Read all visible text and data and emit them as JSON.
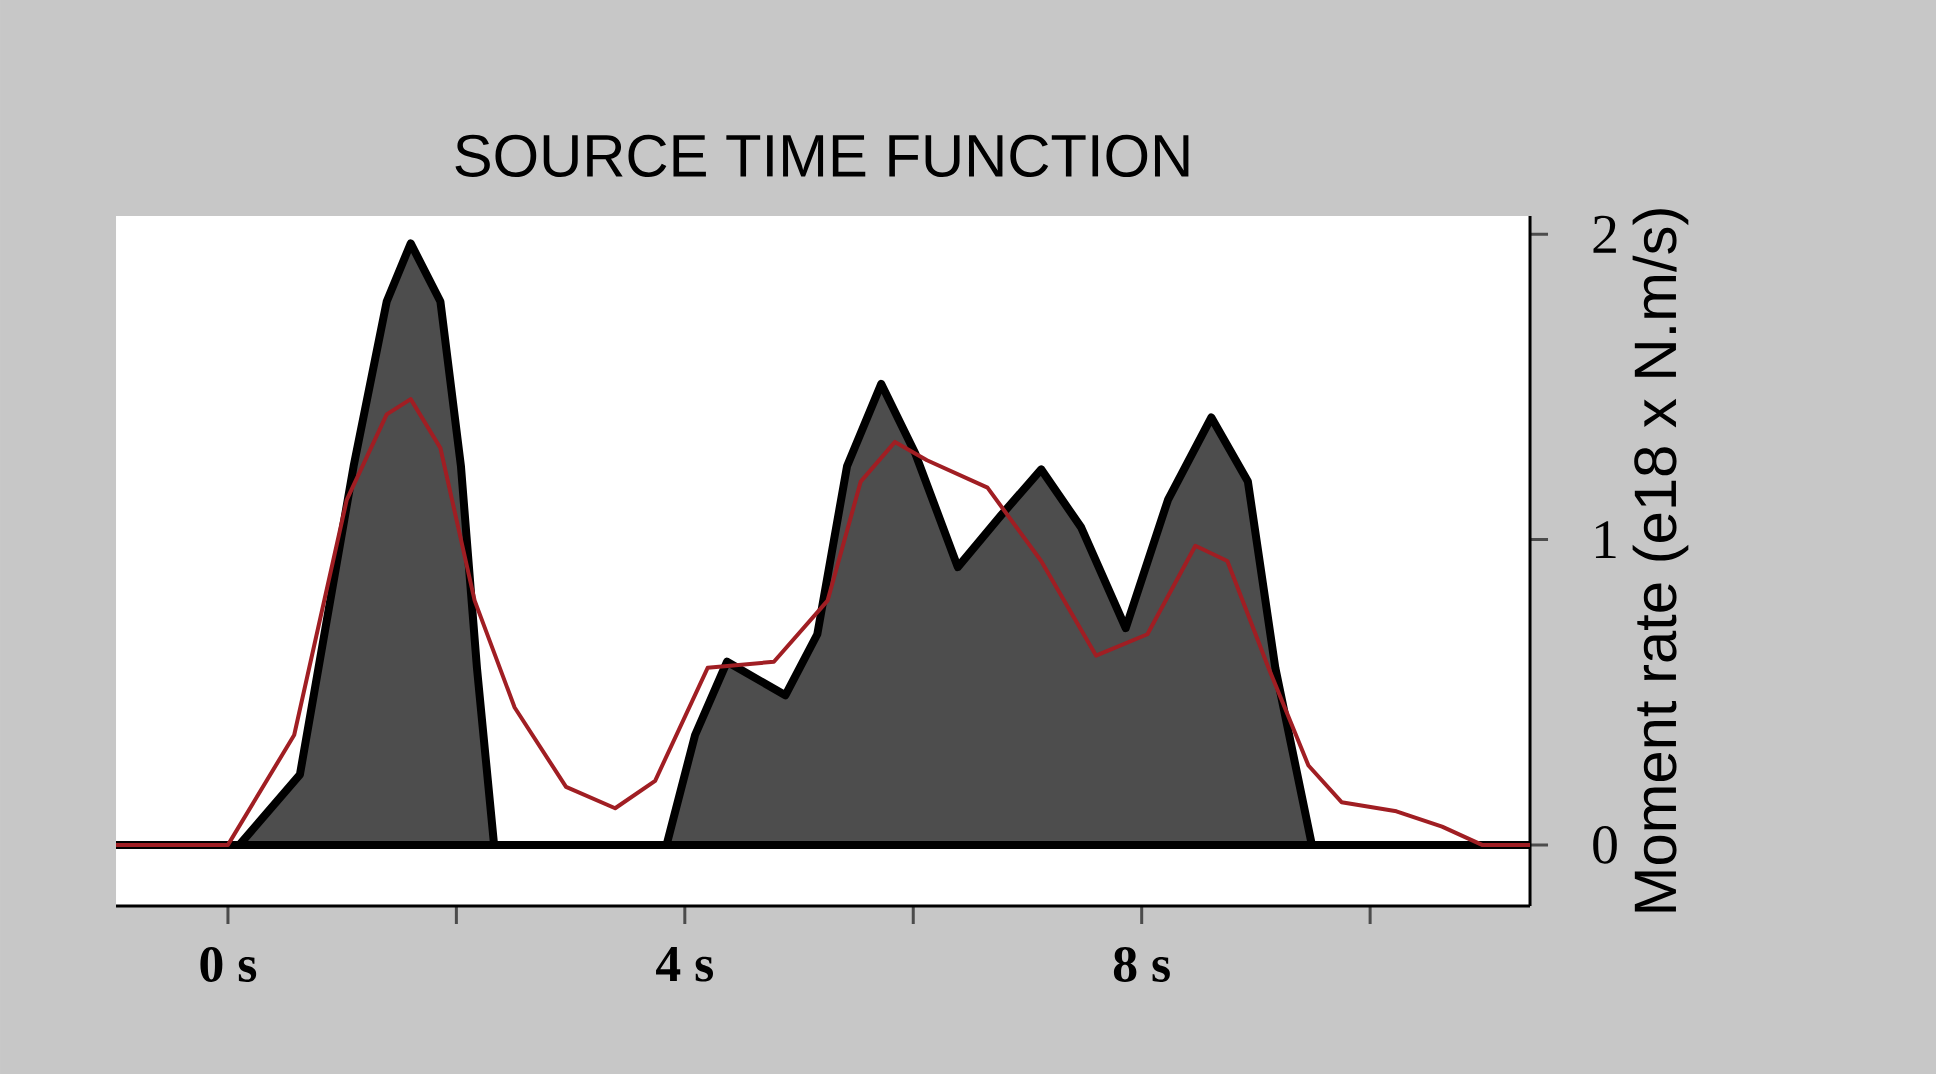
{
  "chart_data": {
    "type": "area",
    "title": "SOURCE TIME FUNCTION",
    "ylabel": "Moment rate (e18 x N.m/s)",
    "xlim": [
      -0.98,
      11.4
    ],
    "ylim": [
      -0.2,
      2.06
    ],
    "xticks": [
      {
        "value": 0,
        "label": "0 s"
      },
      {
        "value": 2,
        "label": null
      },
      {
        "value": 4,
        "label": "4 s"
      },
      {
        "value": 6,
        "label": null
      },
      {
        "value": 8,
        "label": "8 s"
      },
      {
        "value": 10,
        "label": null
      }
    ],
    "yticks": [
      0,
      1,
      2
    ],
    "series": [
      {
        "color": "#4d4d4d",
        "x": [
          -0.98,
          0.1,
          0.63,
          1.1,
          1.39,
          1.6,
          1.86,
          2.04,
          2.18,
          2.33,
          3.84,
          4.09,
          4.37,
          4.88,
          5.16,
          5.42,
          5.72,
          6.02,
          6.39,
          6.77,
          7.12,
          7.47,
          7.86,
          8.23,
          8.61,
          8.93,
          9.17,
          9.49,
          11.4
        ],
        "values": [
          0,
          0,
          0.23,
          1.24,
          1.78,
          1.97,
          1.78,
          1.24,
          0.58,
          0,
          0,
          0.36,
          0.6,
          0.49,
          0.69,
          1.24,
          1.51,
          1.28,
          0.91,
          1.08,
          1.23,
          1.04,
          0.71,
          1.13,
          1.4,
          1.19,
          0.58,
          0,
          0
        ]
      },
      {
        "type": "line",
        "color": "#a01e23",
        "x": [
          -0.98,
          0.0,
          0.58,
          1.04,
          1.39,
          1.6,
          1.86,
          2.16,
          2.51,
          2.96,
          3.39,
          3.74,
          4.2,
          4.78,
          5.25,
          5.54,
          5.84,
          6.12,
          6.65,
          7.12,
          7.6,
          8.05,
          8.47,
          8.75,
          9.11,
          9.46,
          9.75,
          10.23,
          10.63,
          10.98,
          11.4
        ],
        "values": [
          0,
          0,
          0.36,
          1.13,
          1.41,
          1.46,
          1.3,
          0.8,
          0.45,
          0.19,
          0.12,
          0.21,
          0.58,
          0.6,
          0.8,
          1.19,
          1.32,
          1.26,
          1.17,
          0.93,
          0.62,
          0.69,
          0.98,
          0.93,
          0.58,
          0.26,
          0.14,
          0.11,
          0.06,
          0,
          0
        ]
      }
    ]
  }
}
